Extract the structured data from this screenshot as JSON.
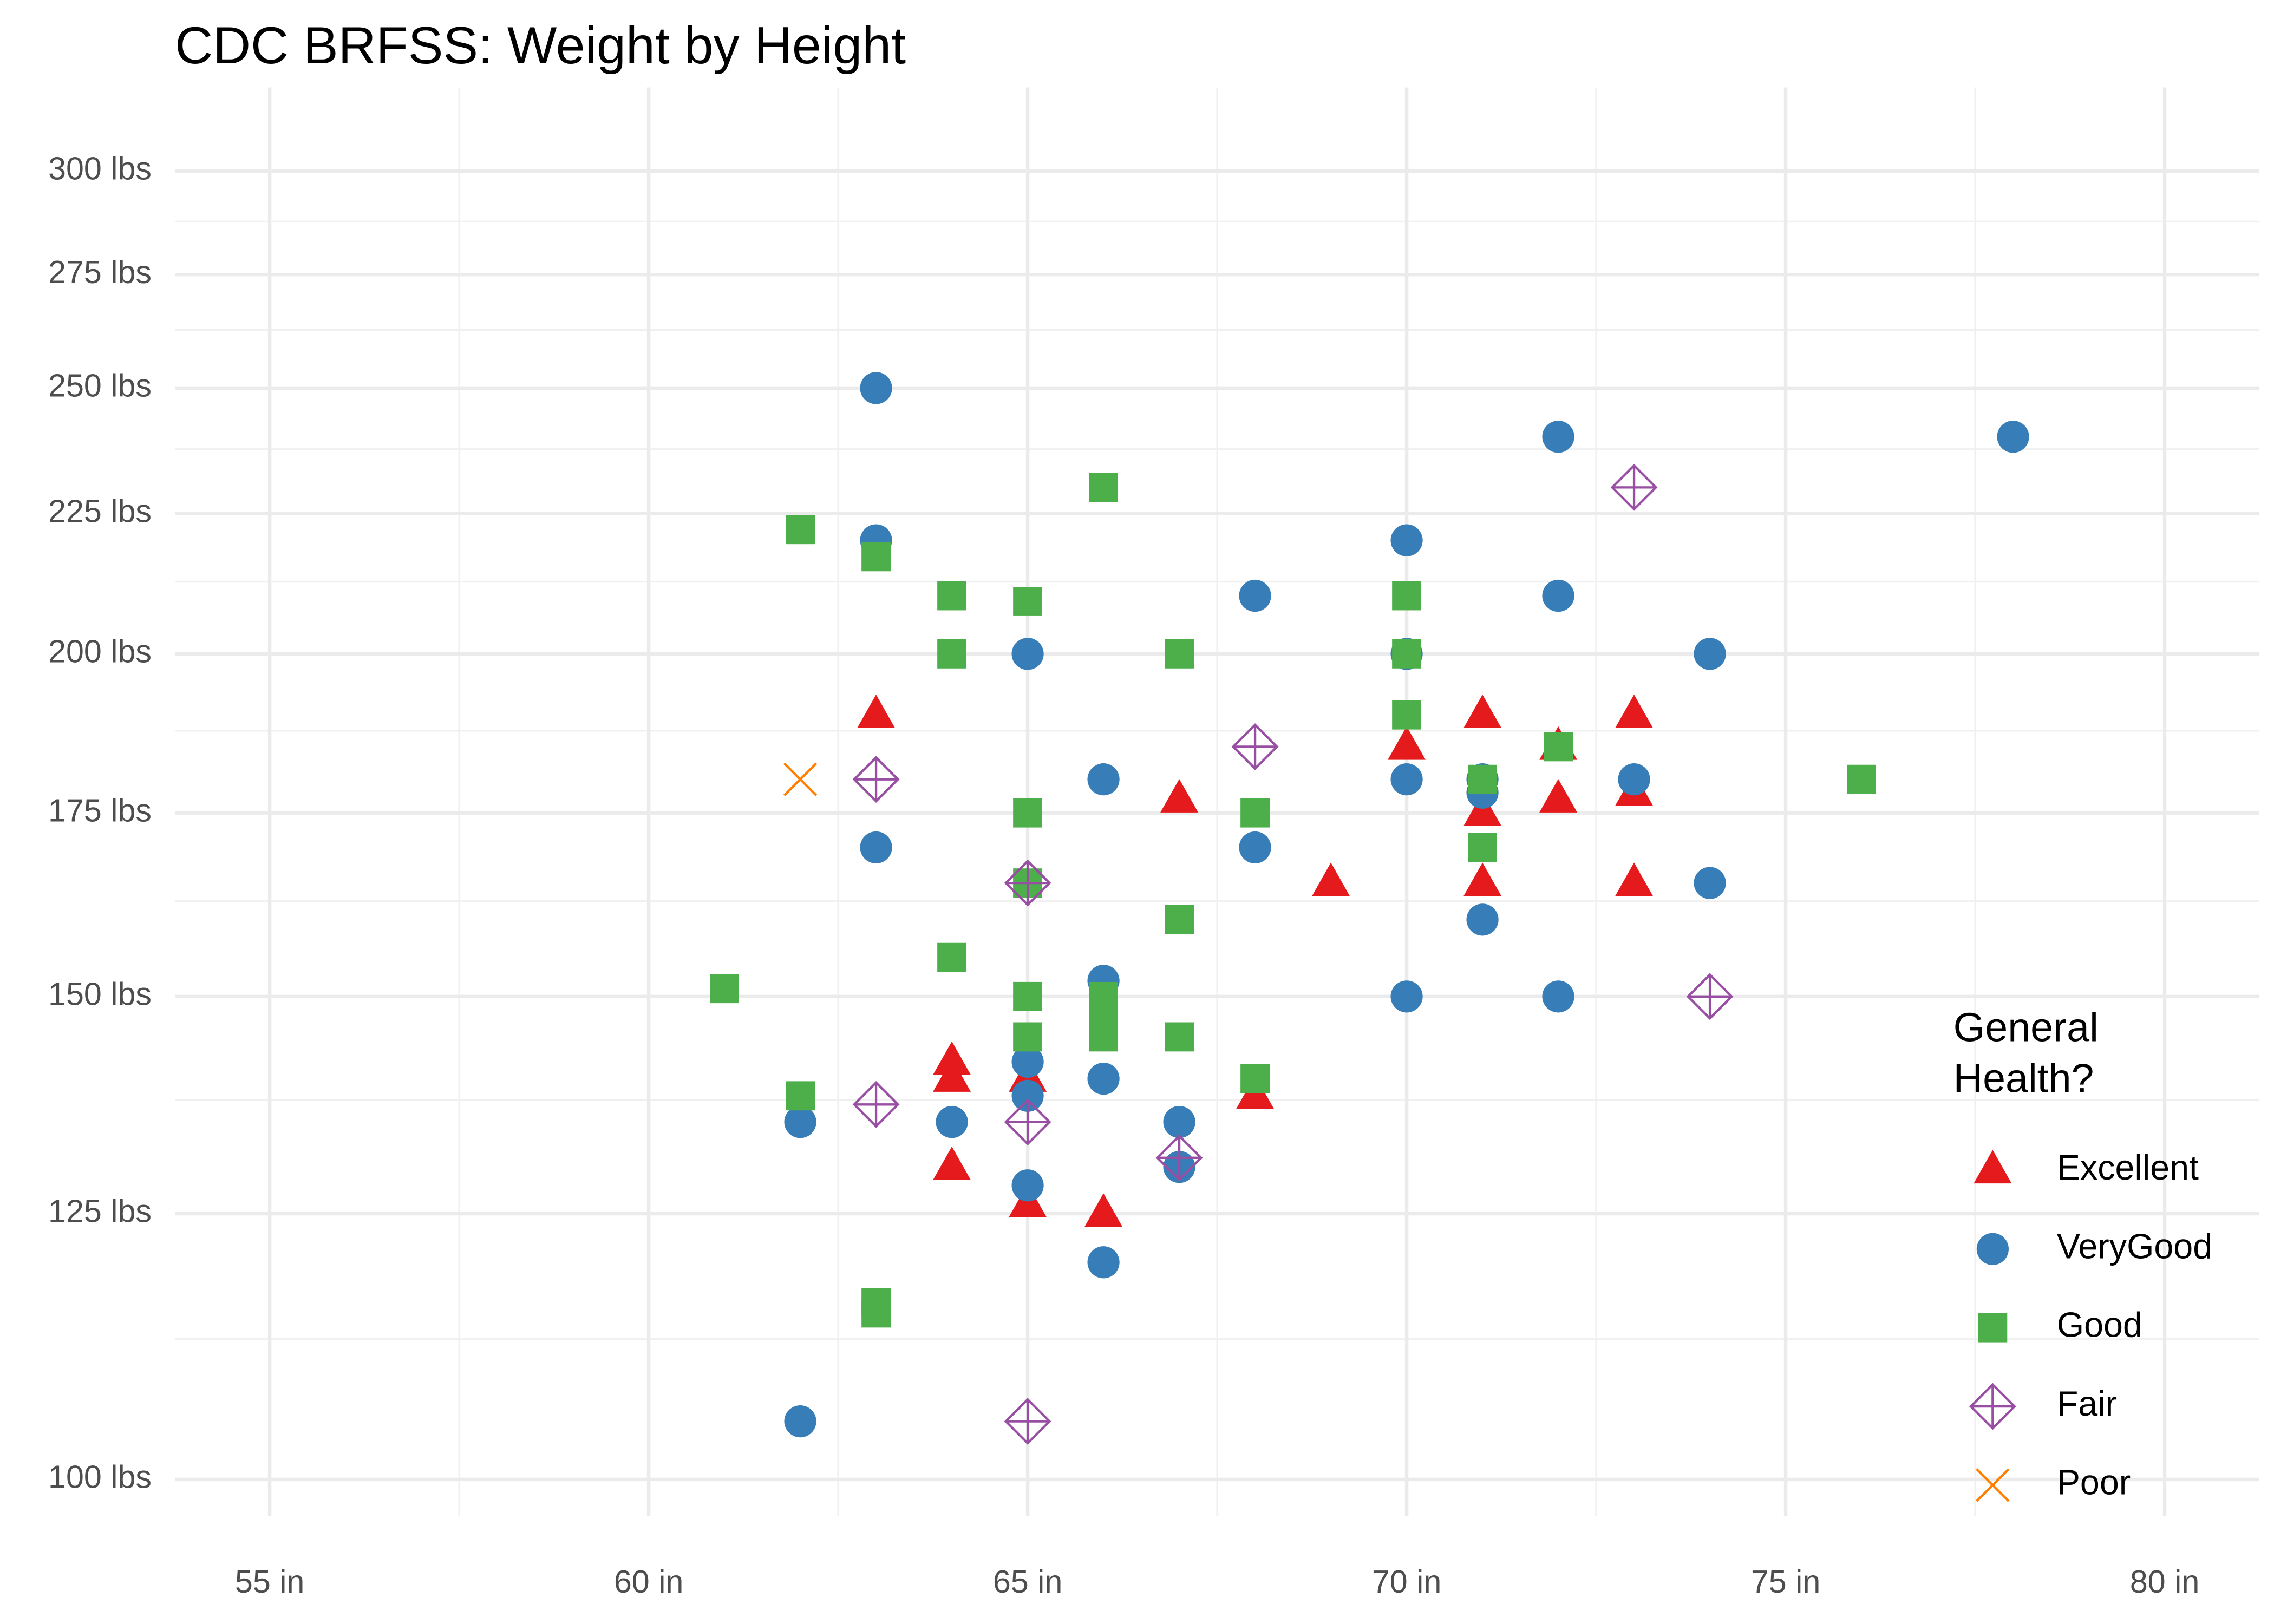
{
  "chart_data": {
    "type": "scatter",
    "title": "CDC BRFSS: Weight by Height",
    "xlim": [
      53.75,
      81.25
    ],
    "xticks": [
      {
        "value": 55,
        "label": "55 in"
      },
      {
        "value": 60,
        "label": "60 in"
      },
      {
        "value": 65,
        "label": "65 in"
      },
      {
        "value": 70,
        "label": "70 in"
      },
      {
        "value": 75,
        "label": "75 in"
      },
      {
        "value": 80,
        "label": "80 in"
      }
    ],
    "xminor": [
      57.5,
      62.5,
      67.5,
      72.5,
      77.5
    ],
    "ylim": [
      97,
      314
    ],
    "yscale": "log",
    "yticks": [
      {
        "value": 100,
        "label": "100 lbs"
      },
      {
        "value": 125,
        "label": "125 lbs"
      },
      {
        "value": 150,
        "label": "150 lbs"
      },
      {
        "value": 175,
        "label": "175 lbs"
      },
      {
        "value": 200,
        "label": "200 lbs"
      },
      {
        "value": 225,
        "label": "225 lbs"
      },
      {
        "value": 250,
        "label": "250 lbs"
      },
      {
        "value": 275,
        "label": "275 lbs"
      },
      {
        "value": 300,
        "label": "300 lbs"
      }
    ],
    "yminor": [
      112.5,
      137.5,
      162.5,
      187.5,
      212.5,
      237.5,
      262.5,
      287.5
    ],
    "grid": true,
    "legend_position": "right",
    "legend_title": [
      "General",
      "Health?"
    ],
    "series": [
      {
        "name": "Excellent",
        "color": "#e41a1c",
        "shape": "triangle",
        "x": [
          63,
          64,
          64,
          64,
          65,
          65,
          66,
          67,
          68,
          69,
          70,
          71,
          71,
          71,
          72,
          72,
          73,
          73,
          73
        ],
        "values": [
          190,
          142,
          140,
          130,
          140,
          126,
          125,
          177,
          138,
          165,
          185,
          190,
          175,
          165,
          185,
          177,
          190,
          178,
          165
        ]
      },
      {
        "name": "VeryGood",
        "color": "#377eb8",
        "shape": "circle",
        "x": [
          62,
          62,
          63,
          63,
          63,
          64,
          65,
          65,
          65,
          65,
          66,
          66,
          66,
          66,
          67,
          67,
          68,
          68,
          70,
          70,
          70,
          70,
          71,
          71,
          71,
          72,
          72,
          72,
          73,
          74,
          74,
          78
        ],
        "values": [
          135,
          105,
          250,
          220,
          170,
          135,
          200,
          142,
          138,
          128,
          180,
          152,
          140,
          120,
          135,
          130,
          210,
          170,
          220,
          200,
          180,
          150,
          180,
          178,
          160,
          240,
          210,
          150,
          180,
          200,
          165,
          240
        ]
      },
      {
        "name": "Good",
        "color": "#4daf4a",
        "shape": "square",
        "x": [
          61,
          62,
          62,
          63,
          63,
          63,
          64,
          64,
          64,
          65,
          65,
          65,
          65,
          65,
          66,
          66,
          66,
          66,
          67,
          67,
          67,
          68,
          68,
          70,
          70,
          70,
          71,
          71,
          72,
          76
        ],
        "values": [
          151,
          222,
          138,
          217,
          116,
          115,
          210,
          200,
          155,
          209,
          175,
          165,
          150,
          145,
          230,
          150,
          147,
          145,
          200,
          160,
          145,
          175,
          140,
          210,
          200,
          190,
          180,
          170,
          185,
          180
        ]
      },
      {
        "name": "Fair",
        "color": "#984ea3",
        "shape": "diamond-plus",
        "x": [
          63,
          63,
          65,
          65,
          65,
          67,
          68,
          73,
          74
        ],
        "values": [
          180,
          137,
          165,
          135,
          105,
          131,
          185,
          230,
          150
        ]
      },
      {
        "name": "Poor",
        "color": "#ff7f00",
        "shape": "cross",
        "x": [
          62
        ],
        "values": [
          180
        ]
      }
    ]
  }
}
